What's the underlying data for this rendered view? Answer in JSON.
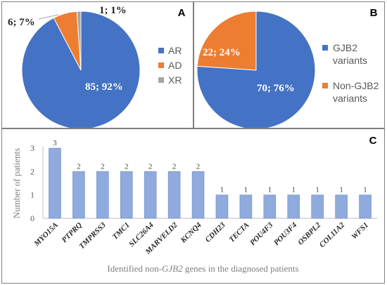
{
  "chart_data": [
    {
      "type": "pie",
      "panel_label": "A",
      "slices": [
        {
          "name": "AR",
          "value": 85,
          "label": "85; 92%",
          "color": "#4472c4"
        },
        {
          "name": "AD",
          "value": 6,
          "label": "6; 7%",
          "color": "#ed7d31"
        },
        {
          "name": "XR",
          "value": 1,
          "label": "1; 1%",
          "color": "#a5a5a5"
        }
      ],
      "legend": "right"
    },
    {
      "type": "pie",
      "panel_label": "B",
      "slices": [
        {
          "name": "GJB2 variants",
          "value": 70,
          "label": "70; 76%",
          "color": "#4472c4"
        },
        {
          "name": "Non-GJB2 variants",
          "value": 22,
          "label": "22; 24%",
          "color": "#ed7d31"
        }
      ],
      "legend": "right"
    },
    {
      "type": "bar",
      "panel_label": "C",
      "categories": [
        "MYO15A",
        "PTPRQ",
        "TMPRSS3",
        "TMC1",
        "SLC26A4",
        "MARVELD2",
        "KCNQ4",
        "CDH23",
        "TECTA",
        "POU4F3",
        "POU3F4",
        "OSBPL2",
        "COL11A2",
        "WFS1"
      ],
      "values": [
        3,
        2,
        2,
        2,
        2,
        2,
        2,
        1,
        1,
        1,
        1,
        1,
        1,
        1
      ],
      "ylabel": "Number of patients",
      "xlabel_parts": [
        "Identified non-",
        "GJB2",
        " genes in the diagnosed patients"
      ],
      "ylim": [
        0,
        3
      ],
      "yticks": [
        "0",
        "1",
        "2",
        "3"
      ],
      "grid": false,
      "bar_color": "#8faadc"
    }
  ]
}
